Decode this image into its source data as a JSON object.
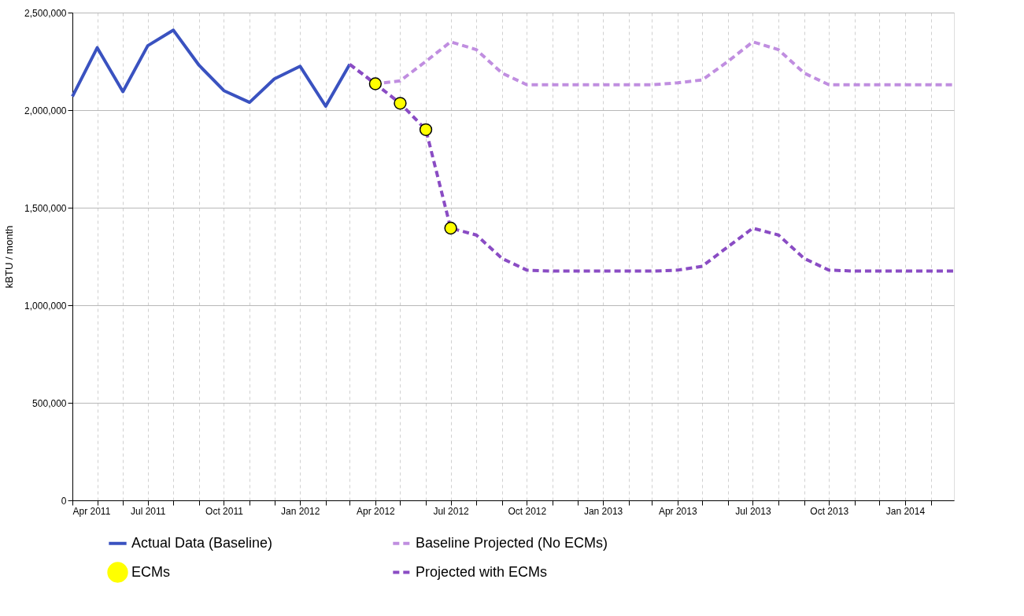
{
  "chart_data": {
    "type": "line",
    "ylabel": "kBTU / month",
    "legend": "bottom",
    "grid": true,
    "xlim": [
      "2011-04",
      "2014-03"
    ],
    "xticks": [
      {
        "value": "2011-04",
        "label": "Apr 2011"
      },
      {
        "value": "2011-05",
        "label": null
      },
      {
        "value": "2011-06",
        "label": null
      },
      {
        "value": "2011-07",
        "label": "Jul 2011"
      },
      {
        "value": "2011-08",
        "label": null
      },
      {
        "value": "2011-09",
        "label": null
      },
      {
        "value": "2011-10",
        "label": "Oct 2011"
      },
      {
        "value": "2011-11",
        "label": null
      },
      {
        "value": "2011-12",
        "label": null
      },
      {
        "value": "2012-01",
        "label": "Jan 2012"
      },
      {
        "value": "2012-02",
        "label": null
      },
      {
        "value": "2012-03",
        "label": null
      },
      {
        "value": "2012-04",
        "label": "Apr 2012"
      },
      {
        "value": "2012-05",
        "label": null
      },
      {
        "value": "2012-06",
        "label": null
      },
      {
        "value": "2012-07",
        "label": "Jul 2012"
      },
      {
        "value": "2012-08",
        "label": null
      },
      {
        "value": "2012-09",
        "label": null
      },
      {
        "value": "2012-10",
        "label": "Oct 2012"
      },
      {
        "value": "2012-11",
        "label": null
      },
      {
        "value": "2012-12",
        "label": null
      },
      {
        "value": "2013-01",
        "label": "Jan 2013"
      },
      {
        "value": "2013-02",
        "label": null
      },
      {
        "value": "2013-03",
        "label": null
      },
      {
        "value": "2013-04",
        "label": "Apr 2013"
      },
      {
        "value": "2013-05",
        "label": null
      },
      {
        "value": "2013-06",
        "label": null
      },
      {
        "value": "2013-07",
        "label": "Jul 2013"
      },
      {
        "value": "2013-08",
        "label": null
      },
      {
        "value": "2013-09",
        "label": null
      },
      {
        "value": "2013-10",
        "label": "Oct 2013"
      },
      {
        "value": "2013-11",
        "label": null
      },
      {
        "value": "2013-12",
        "label": null
      },
      {
        "value": "2014-01",
        "label": "Jan 2014"
      },
      {
        "value": "2014-02",
        "label": null
      }
    ],
    "ylim": [
      0,
      2500000
    ],
    "yticks": [
      {
        "value": 0,
        "label": "0"
      },
      {
        "value": 500000,
        "label": "500,000"
      },
      {
        "value": 1000000,
        "label": "1,000,000"
      },
      {
        "value": 1500000,
        "label": "1,500,000"
      },
      {
        "value": 2000000,
        "label": "2,000,000"
      },
      {
        "value": 2500000,
        "label": "2,500,000"
      }
    ],
    "series": [
      {
        "name": "Actual Data (Baseline)",
        "type": "line",
        "line_style": "solid",
        "color": "#3a52c0",
        "x": [
          "2011-04",
          "2011-05",
          "2011-06",
          "2011-07",
          "2011-08",
          "2011-09",
          "2011-10",
          "2011-11",
          "2011-12",
          "2012-01",
          "2012-02",
          "2012-03"
        ],
        "values": [
          2070000,
          2320000,
          2095000,
          2330000,
          2410000,
          2230000,
          2100000,
          2040000,
          2160000,
          2225000,
          2020000,
          2235000
        ]
      },
      {
        "name": "Baseline Projected (No ECMs)",
        "type": "line",
        "line_style": "dashed",
        "color": "#c08ee0",
        "x": [
          "2012-03",
          "2012-04",
          "2012-05",
          "2012-06",
          "2012-07",
          "2012-08",
          "2012-09",
          "2012-10",
          "2012-11",
          "2012-12",
          "2013-01",
          "2013-02",
          "2013-03",
          "2013-04",
          "2013-05",
          "2013-06",
          "2013-07",
          "2013-08",
          "2013-09",
          "2013-10",
          "2013-11",
          "2013-12",
          "2014-01",
          "2014-02",
          "2014-03"
        ],
        "values": [
          2235000,
          2135000,
          2150000,
          2250000,
          2350000,
          2310000,
          2190000,
          2130000,
          2130000,
          2130000,
          2130000,
          2130000,
          2130000,
          2140000,
          2155000,
          2250000,
          2350000,
          2310000,
          2190000,
          2130000,
          2130000,
          2130000,
          2130000,
          2130000,
          2130000
        ]
      },
      {
        "name": "ECMs",
        "type": "scatter",
        "marker": "circle",
        "color": "#ffff00",
        "x": [
          "2012-04",
          "2012-05",
          "2012-06",
          "2012-07"
        ],
        "values": [
          2135000,
          2035000,
          1900000,
          1395000
        ]
      },
      {
        "name": "Projected with ECMs",
        "type": "line",
        "line_style": "dashed",
        "color": "#8a4cc4",
        "x": [
          "2012-03",
          "2012-04",
          "2012-05",
          "2012-06",
          "2012-07",
          "2012-08",
          "2012-09",
          "2012-10",
          "2012-11",
          "2012-12",
          "2013-01",
          "2013-02",
          "2013-03",
          "2013-04",
          "2013-05",
          "2013-06",
          "2013-07",
          "2013-08",
          "2013-09",
          "2013-10",
          "2013-11",
          "2013-12",
          "2014-01",
          "2014-02",
          "2014-03"
        ],
        "values": [
          2235000,
          2135000,
          2035000,
          1900000,
          1395000,
          1360000,
          1240000,
          1180000,
          1175000,
          1175000,
          1175000,
          1175000,
          1175000,
          1180000,
          1200000,
          1300000,
          1395000,
          1360000,
          1240000,
          1180000,
          1175000,
          1175000,
          1175000,
          1175000,
          1175000
        ]
      }
    ]
  }
}
